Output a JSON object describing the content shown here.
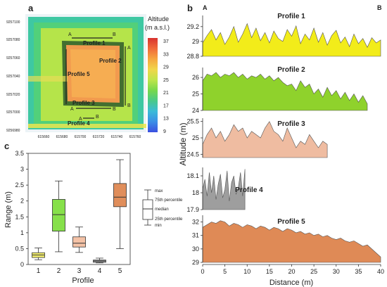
{
  "panel_labels": {
    "a": "a",
    "b": "b",
    "c": "c"
  },
  "map": {
    "colorbar_title_1": "Altitude",
    "colorbar_title_2": "(m a.s.l.)",
    "colorbar_ticks": [
      "37",
      "33",
      "29",
      "25",
      "21",
      "17",
      "13",
      "9"
    ],
    "colorbar_tick_colors": [
      "#222222",
      "#222222",
      "#222222",
      "#2b3bb0",
      "#222222",
      "#222222",
      "#222222",
      "#2b3bb0"
    ],
    "colorbar_stops": [
      "#d8322f",
      "#f06a3a",
      "#f6a53f",
      "#f1d64a",
      "#bfe54b",
      "#77d84c",
      "#49c98a",
      "#3bbbd8",
      "#3b8ee6",
      "#3b4fe0"
    ],
    "y_ticks": [
      "9257100",
      "9257080",
      "9257060",
      "9257040",
      "9257020",
      "9257000",
      "9256980"
    ],
    "x_ticks": [
      "615660",
      "615680",
      "615700",
      "615720",
      "615740",
      "615760"
    ],
    "profile_labels": [
      "Profile 1",
      "Profile 2",
      "Profile 5",
      "Profile 3",
      "Profile 4"
    ],
    "endpoint_labels": [
      "A",
      "B",
      "A",
      "B",
      "A",
      "B",
      "A",
      "B"
    ]
  },
  "boxplot": {
    "ylabel": "Range (m)",
    "xlabel": "Profile",
    "legend_labels": [
      "max",
      "75th percentile",
      "median",
      "25th percentile",
      "min"
    ]
  },
  "profiles_axes": {
    "ylabel": "Altitude (m)",
    "xlabel": "Distance (m)",
    "end_a": "A",
    "end_b": "B"
  },
  "chart_data": [
    {
      "type": "box",
      "categories": [
        "1",
        "2",
        "3",
        "4",
        "5"
      ],
      "ylim": [
        0,
        3.5
      ],
      "yticks": [
        0,
        0.5,
        1,
        1.5,
        2,
        2.5,
        3,
        3.5
      ],
      "series": [
        {
          "category": "1",
          "min": 0.15,
          "q1": 0.22,
          "median": 0.3,
          "q3": 0.37,
          "max": 0.52,
          "color": "#f4ef6f"
        },
        {
          "category": "2",
          "min": 0.4,
          "q1": 1.05,
          "median": 1.57,
          "q3": 2.05,
          "max": 2.63,
          "color": "#86e04a"
        },
        {
          "category": "3",
          "min": 0.38,
          "q1": 0.55,
          "median": 0.67,
          "q3": 0.87,
          "max": 1.18,
          "color": "#f4c2a6"
        },
        {
          "category": "4",
          "min": 0.05,
          "q1": 0.07,
          "median": 0.11,
          "q3": 0.14,
          "max": 0.2,
          "color": "#a7a7a7"
        },
        {
          "category": "5",
          "min": 0.5,
          "q1": 1.82,
          "median": 2.12,
          "q3": 2.55,
          "max": 3.3,
          "color": "#e08e5b"
        }
      ]
    },
    {
      "type": "area",
      "title": "Profile 1",
      "color": "#f2ec1a",
      "ylim": [
        28.8,
        29.35
      ],
      "yticks": [
        "29.2",
        "29",
        "28.8"
      ],
      "ytick_values": [
        29.2,
        29.0,
        28.8
      ],
      "x": [
        0,
        1,
        2,
        3,
        4,
        5,
        6,
        7,
        8,
        9,
        10,
        11,
        12,
        13,
        14,
        15,
        16,
        17,
        18,
        19,
        20,
        21,
        22,
        23,
        24,
        25,
        26,
        27,
        28,
        29,
        30,
        31,
        32,
        33,
        34,
        35,
        36,
        37,
        38,
        39,
        40
      ],
      "y": [
        28.98,
        29.08,
        29.16,
        29.02,
        29.12,
        28.96,
        29.06,
        29.2,
        28.99,
        29.1,
        29.24,
        29.05,
        29.18,
        29.01,
        29.12,
        28.98,
        29.14,
        29.04,
        29.0,
        29.16,
        29.07,
        29.21,
        28.97,
        29.1,
        29.02,
        29.18,
        28.99,
        29.12,
        28.95,
        29.08,
        29.15,
        28.98,
        29.06,
        28.93,
        29.1,
        28.97,
        29.04,
        28.92,
        29.05,
        28.98,
        29.02
      ]
    },
    {
      "type": "area",
      "title": "Profile 2",
      "color": "#8fd22c",
      "ylim": [
        24,
        26.6
      ],
      "yticks": [
        "26",
        "25",
        "24"
      ],
      "ytick_values": [
        26,
        25,
        24
      ],
      "x": [
        0,
        1,
        2,
        3,
        4,
        5,
        6,
        7,
        8,
        9,
        10,
        11,
        12,
        13,
        14,
        15,
        16,
        17,
        18,
        19,
        20,
        21,
        22,
        23,
        24,
        25,
        26,
        27,
        28,
        29,
        30,
        31,
        32,
        33,
        34,
        35,
        36,
        37
      ],
      "y": [
        25.8,
        26.2,
        26.1,
        26.3,
        26.0,
        26.2,
        26.1,
        26.3,
        26.0,
        26.2,
        25.9,
        26.1,
        26.0,
        26.2,
        25.9,
        26.1,
        25.8,
        26.0,
        25.7,
        25.5,
        25.6,
        25.2,
        25.8,
        25.4,
        25.6,
        25.0,
        25.3,
        24.8,
        25.4,
        24.9,
        25.2,
        24.7,
        25.1,
        24.6,
        25.0,
        24.5,
        24.9,
        24.4
      ]
    },
    {
      "type": "area",
      "title": "Profile 3",
      "color": "#efbca1",
      "ylim": [
        24.4,
        25.6
      ],
      "yticks": [
        "25.5",
        "25",
        "24.5"
      ],
      "ytick_values": [
        25.5,
        25,
        24.5
      ],
      "x": [
        0,
        1,
        2,
        3,
        4,
        5,
        6,
        7,
        8,
        9,
        10,
        11,
        12,
        13,
        14,
        15,
        16,
        17,
        18,
        19,
        20,
        21,
        22,
        23,
        24,
        25,
        26,
        27,
        28
      ],
      "y": [
        24.8,
        25.1,
        25.3,
        25.0,
        25.2,
        24.9,
        25.1,
        25.4,
        25.2,
        25.3,
        25.0,
        25.2,
        25.1,
        25.0,
        25.3,
        25.5,
        25.2,
        25.1,
        24.9,
        25.3,
        25.0,
        24.7,
        24.9,
        24.8,
        25.1,
        24.9,
        24.7,
        24.9,
        24.8
      ]
    },
    {
      "type": "area",
      "title": "Profile 4",
      "color": "#9e9e9e",
      "ylim": [
        17.9,
        18.15
      ],
      "yticks": [
        "18.1",
        "18",
        "17.9"
      ],
      "ytick_values": [
        18.1,
        18.0,
        17.9
      ],
      "x": [
        0,
        0.5,
        1,
        1.5,
        2,
        2.5,
        3,
        3.5,
        4,
        4.5,
        5,
        5.5,
        6,
        6.5,
        7,
        7.5,
        8,
        8.5,
        9,
        9.5
      ],
      "y": [
        18.02,
        18.08,
        17.98,
        18.12,
        18.0,
        18.1,
        17.96,
        18.05,
        18.11,
        17.97,
        18.02,
        18.13,
        17.95,
        18.06,
        18.1,
        17.99,
        18.03,
        18.12,
        17.98,
        18.14
      ]
    },
    {
      "type": "area",
      "title": "Profile 5",
      "color": "#df8a56",
      "ylim": [
        29,
        32.5
      ],
      "yticks": [
        "32",
        "31",
        "30",
        "29"
      ],
      "ytick_values": [
        32,
        31,
        30,
        29
      ],
      "x": [
        0,
        1,
        2,
        3,
        4,
        5,
        6,
        7,
        8,
        9,
        10,
        11,
        12,
        13,
        14,
        15,
        16,
        17,
        18,
        19,
        20,
        21,
        22,
        23,
        24,
        25,
        26,
        27,
        28,
        29,
        30,
        31,
        32,
        33,
        34,
        35,
        36,
        37,
        38,
        39,
        40
      ],
      "y": [
        31.6,
        31.8,
        32.0,
        31.9,
        32.1,
        32.0,
        31.7,
        31.9,
        31.8,
        31.6,
        31.8,
        31.7,
        31.5,
        31.7,
        31.6,
        31.4,
        31.6,
        31.5,
        31.3,
        31.5,
        31.4,
        31.2,
        31.3,
        31.1,
        31.2,
        31.0,
        31.1,
        30.9,
        31.0,
        30.8,
        30.7,
        30.8,
        30.6,
        30.5,
        30.6,
        30.4,
        30.2,
        30.3,
        30.0,
        29.7,
        29.4
      ]
    }
  ],
  "profiles_xaxis": {
    "xlim": [
      0,
      40
    ],
    "xticks": [
      "0",
      "5",
      "10",
      "15",
      "20",
      "25",
      "30",
      "35",
      "40"
    ],
    "xtick_values": [
      0,
      5,
      10,
      15,
      20,
      25,
      30,
      35,
      40
    ]
  }
}
